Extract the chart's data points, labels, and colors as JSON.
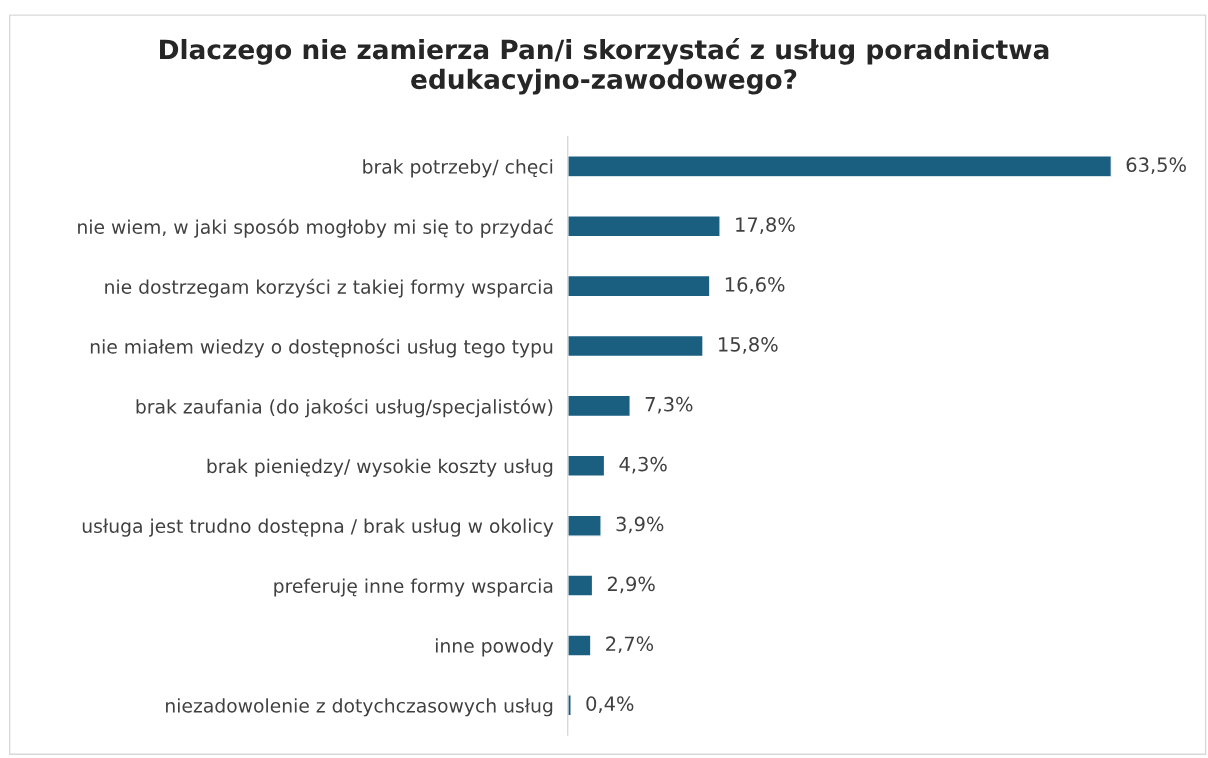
{
  "chart_data": {
    "type": "bar",
    "orientation": "horizontal",
    "title": "Dlaczego nie zamierza Pan/i skorzystać z usług poradnictwa edukacyjno-zawodowego?",
    "categories": [
      "brak potrzeby/ chęci",
      "nie wiem, w jaki sposób mogłoby mi się to przydać",
      "nie dostrzegam korzyści z takiej formy wsparcia",
      "nie miałem wiedzy o dostępności usług tego typu",
      "brak zaufania (do jakości usług/specjalistów)",
      "brak pieniędzy/ wysokie koszty usług",
      "usługa jest trudno dostępna / brak usług w okolicy",
      "preferuję inne formy wsparcia",
      "inne powody",
      "niezadowolenie z dotychczasowych usług"
    ],
    "values": [
      63.5,
      17.8,
      16.6,
      15.8,
      7.3,
      4.3,
      3.9,
      2.9,
      2.7,
      0.4
    ],
    "value_labels": [
      "63,5%",
      "17,8%",
      "16,6%",
      "15,8%",
      "7,3%",
      "4,3%",
      "3,9%",
      "2,9%",
      "2,7%",
      "0,4%"
    ],
    "color": "#1a5e80",
    "grid": false,
    "legend": false,
    "tick_labels": "y"
  }
}
